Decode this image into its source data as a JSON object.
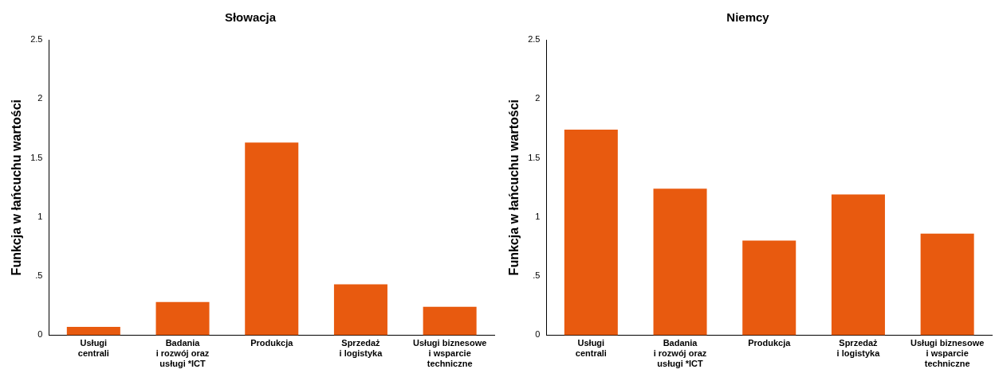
{
  "chart_data": [
    {
      "type": "bar",
      "title": "Słowacja",
      "ylabel": "Funkcja w łańcuchu wartości",
      "categories": [
        "Usługi\ncentrali",
        "Badania\ni rozwój oraz\nusługi *ICT",
        "Produkcja",
        "Sprzedaż\ni logistyka",
        "Usługi biznesowe\ni wsparcie\ntechniczne"
      ],
      "values": [
        0.07,
        0.28,
        1.63,
        0.43,
        0.24
      ],
      "color": "#e85a0f",
      "ylim": [
        0,
        2.5
      ],
      "yticks": [
        0,
        {
          "value": 0.5,
          "label": ".5"
        },
        1,
        1.5,
        2,
        2.5
      ],
      "grid": false,
      "legend": false
    },
    {
      "type": "bar",
      "title": "Niemcy",
      "ylabel": "Funkcja w łańcuchu wartości",
      "categories": [
        "Usługi\ncentrali",
        "Badania\ni rozwój oraz\nusługi *ICT",
        "Produkcja",
        "Sprzedaż\ni logistyka",
        "Usługi biznesowe\ni wsparcie\ntechniczne"
      ],
      "values": [
        1.74,
        1.24,
        0.8,
        1.19,
        0.86
      ],
      "color": "#e85a0f",
      "ylim": [
        0,
        2.5
      ],
      "yticks": [
        0,
        {
          "value": 0.5,
          "label": ".5"
        },
        1,
        1.5,
        2,
        2.5
      ],
      "grid": false,
      "legend": false
    }
  ]
}
